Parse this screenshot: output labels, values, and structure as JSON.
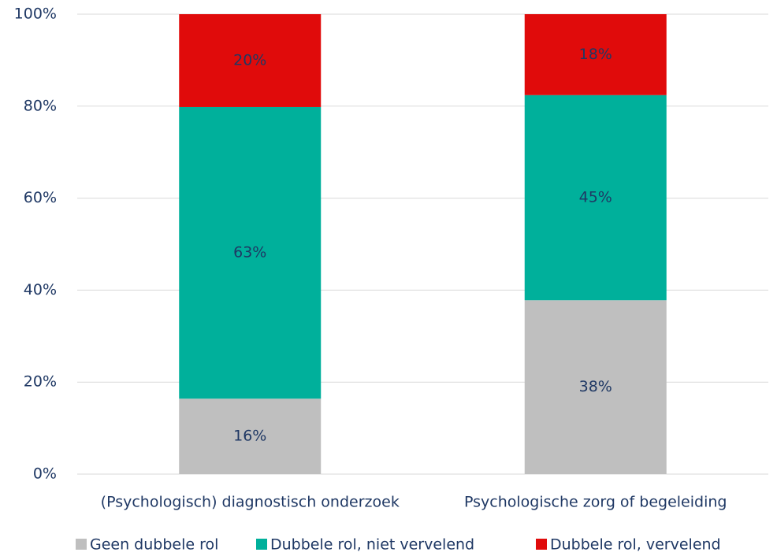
{
  "chart_data": {
    "type": "stacked_bar",
    "categories": [
      "(Psychologisch) diagnostisch onderzoek",
      "Psychologische zorg of begeleiding"
    ],
    "series": [
      {
        "name": "Geen dubbele rol",
        "color": "#bfbfbf",
        "values": [
          16.4,
          37.8
        ],
        "value_labels": [
          "16%",
          "38%"
        ]
      },
      {
        "name": "Dubbele rol, niet vervelend",
        "color": "#00b09b",
        "values": [
          63.4,
          44.6
        ],
        "value_labels": [
          "63%",
          "45%"
        ]
      },
      {
        "name": "Dubbele rol, vervelend",
        "color": "#e00b0b",
        "values": [
          20.2,
          17.6
        ],
        "value_labels": [
          "20%",
          "18%"
        ]
      }
    ],
    "ylim": [
      0,
      100
    ],
    "yticks": [
      {
        "value": 0,
        "label": "0%"
      },
      {
        "value": 20,
        "label": "20%"
      },
      {
        "value": 40,
        "label": "40%"
      },
      {
        "value": 60,
        "label": "60%"
      },
      {
        "value": 80,
        "label": "80%"
      },
      {
        "value": 100,
        "label": "100%"
      }
    ],
    "grid": true,
    "legend": "bottom"
  }
}
